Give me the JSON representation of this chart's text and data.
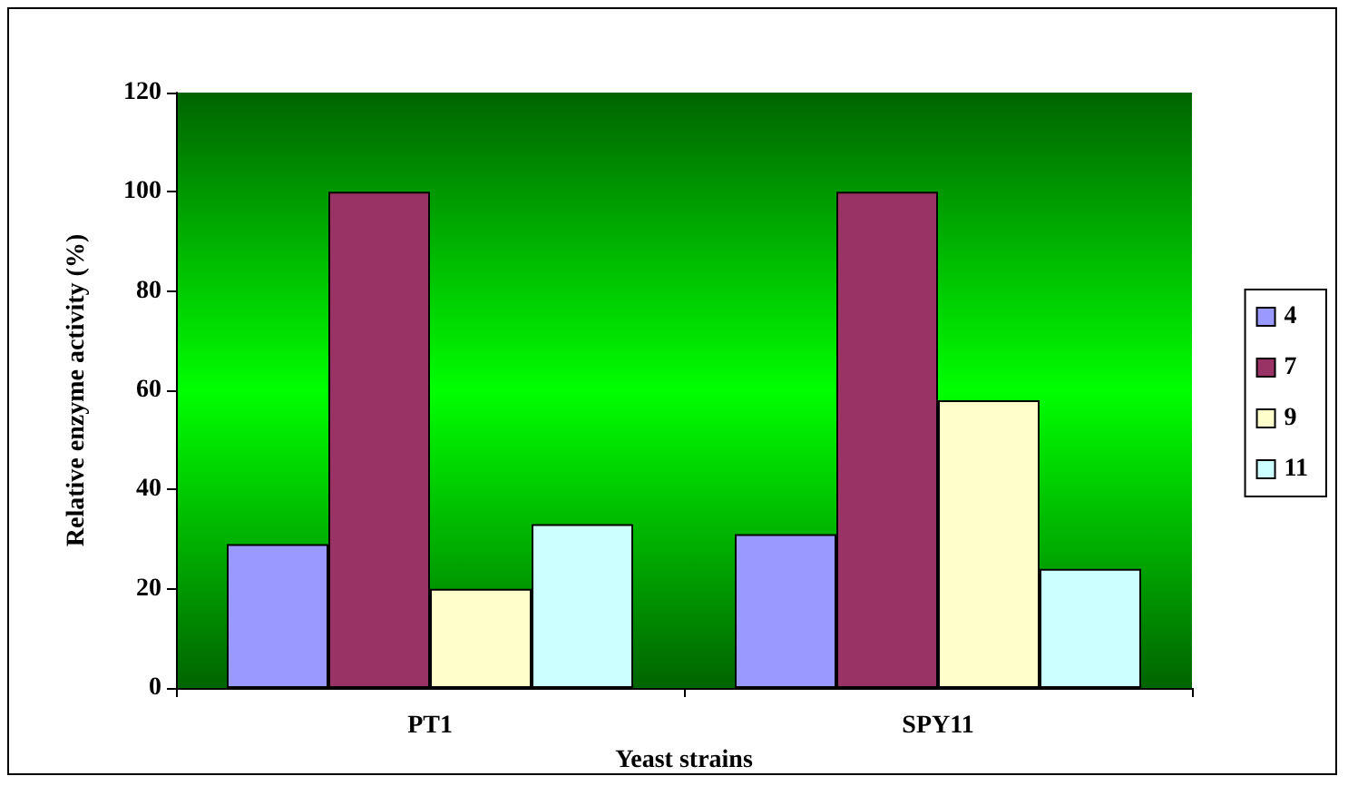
{
  "chart_data": {
    "type": "bar",
    "xlabel": "Yeast strains",
    "ylabel": "Relative enzyme activity (%)",
    "categories": [
      "PT1",
      "SPY11"
    ],
    "series": [
      {
        "name": "4",
        "color": "#9999ff",
        "values": [
          29,
          31
        ]
      },
      {
        "name": "7",
        "color": "#993366",
        "values": [
          100,
          100
        ]
      },
      {
        "name": "9",
        "color": "#ffffcc",
        "values": [
          20,
          58
        ]
      },
      {
        "name": "11",
        "color": "#ccffff",
        "values": [
          33,
          24
        ]
      }
    ],
    "ylim": [
      0,
      120
    ],
    "yticks": [
      0,
      20,
      40,
      60,
      80,
      100,
      120
    ],
    "grid": false,
    "legend": "right"
  }
}
